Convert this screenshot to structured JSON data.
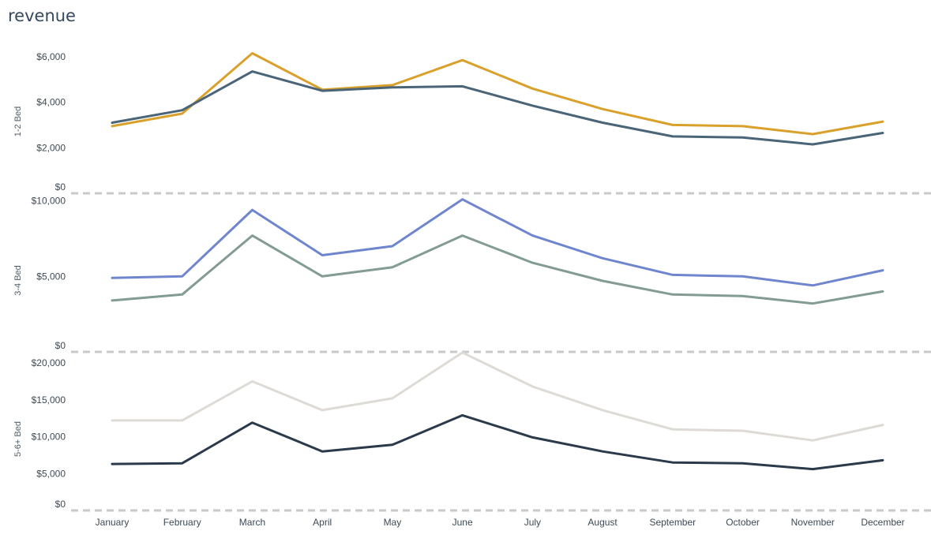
{
  "chart_data": {
    "type": "line",
    "title": "revenue",
    "categories": [
      "January",
      "February",
      "March",
      "April",
      "May",
      "June",
      "July",
      "August",
      "September",
      "October",
      "November",
      "December"
    ],
    "panels": [
      {
        "label": "1-2 Bed",
        "ylim": [
          0,
          7000
        ],
        "yticks": [
          0,
          2000,
          4000,
          6000
        ],
        "ytick_labels": [
          "$0",
          "$2,000",
          "$4,000",
          "$6,000"
        ],
        "series": [
          {
            "color": "#d9a12b",
            "values": [
              2950,
              3500,
              6150,
              4550,
              4750,
              5850,
              4600,
              3700,
              3000,
              2950,
              2600,
              3150
            ]
          },
          {
            "color": "#4a6478",
            "values": [
              3100,
              3650,
              5350,
              4500,
              4650,
              4700,
              3850,
              3100,
              2500,
              2450,
              2150,
              2650
            ]
          }
        ]
      },
      {
        "label": "3-4 Bed",
        "ylim": [
          0,
          10500
        ],
        "yticks": [
          0,
          5000,
          10000
        ],
        "ytick_labels": [
          "$0",
          "$5,000",
          "$10,000"
        ],
        "series": [
          {
            "color": "#6f86cf",
            "values": [
              4900,
              5000,
              9400,
              6400,
              7000,
              10100,
              7700,
              6200,
              5100,
              5000,
              4400,
              5400
            ]
          },
          {
            "color": "#839c91",
            "values": [
              3400,
              3800,
              7700,
              5000,
              5600,
              7700,
              5900,
              4700,
              3800,
              3700,
              3200,
              4000
            ]
          }
        ]
      },
      {
        "label": "5-6+ Bed",
        "ylim": [
          0,
          21500
        ],
        "yticks": [
          0,
          5000,
          10000,
          15000,
          20000
        ],
        "ytick_labels": [
          "$0",
          "$5,000",
          "$10,000",
          "$15,000",
          "$20,000"
        ],
        "series": [
          {
            "color": "#dedbd6",
            "values": [
              12200,
              12200,
              17500,
              13600,
              15200,
              21400,
              16800,
              13600,
              11000,
              10800,
              9500,
              11600
            ]
          },
          {
            "color": "#2b3a4a",
            "values": [
              6300,
              6400,
              11900,
              8000,
              8900,
              12900,
              9900,
              8000,
              6500,
              6400,
              5600,
              6800
            ]
          }
        ]
      }
    ],
    "grid": false,
    "legend": "none"
  }
}
